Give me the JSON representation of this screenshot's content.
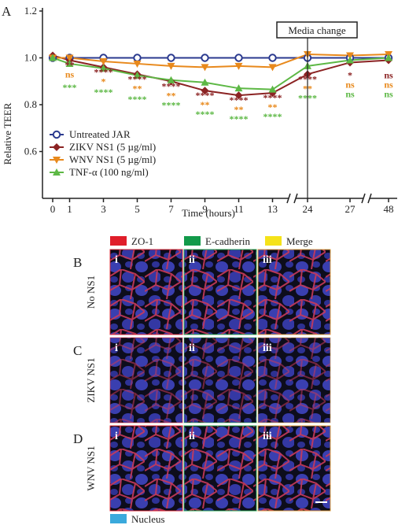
{
  "panel_labels": {
    "A": "A",
    "B": "B",
    "C": "C",
    "D": "D"
  },
  "chart_data": {
    "type": "line",
    "ylabel": "Relative TEER",
    "xlabel": "Time (hours)",
    "ylim": [
      0.4,
      1.2
    ],
    "yticks": [
      "0.6",
      "0.8",
      "1.0",
      "1.2"
    ],
    "x": [
      0,
      1,
      3,
      5,
      7,
      9,
      11,
      13,
      24,
      27,
      48
    ],
    "x_ticks": [
      "0",
      "1",
      "3",
      "5",
      "7",
      "9",
      "11",
      "13",
      "24",
      "27",
      "48"
    ],
    "annotation": "Media change",
    "legend_position": "bottom-left",
    "series": [
      {
        "name": "Untreated JAR",
        "color": "#2b3a8f",
        "marker": "circle",
        "values": [
          1.0,
          1.0,
          1.0,
          1.0,
          1.0,
          1.0,
          1.0,
          1.0,
          1.0,
          1.0,
          1.0
        ]
      },
      {
        "name": "ZIKV NS1 (5 µg/ml)",
        "color": "#8b2323",
        "marker": "diamond",
        "values": [
          1.01,
          0.99,
          0.96,
          0.93,
          0.9,
          0.86,
          0.84,
          0.85,
          0.93,
          0.98,
          0.99
        ]
      },
      {
        "name": "WNV NS1 (5 µg/ml)",
        "color": "#e8891c",
        "marker": "triangle-down",
        "values": [
          1.0,
          1.0,
          0.985,
          0.975,
          0.965,
          0.96,
          0.965,
          0.96,
          1.015,
          1.01,
          1.015
        ]
      },
      {
        "name": "TNF-α (100 ng/ml)",
        "color": "#5db845",
        "marker": "triangle-up",
        "values": [
          1.0,
          0.975,
          0.955,
          0.925,
          0.905,
          0.895,
          0.87,
          0.865,
          0.965,
          0.99,
          1.0
        ]
      }
    ],
    "significance": [
      {
        "series": 1,
        "labels": [
          "",
          "**",
          "****",
          "****",
          "****",
          "****",
          "****",
          "****",
          "****",
          "*",
          "ns"
        ]
      },
      {
        "series": 2,
        "labels": [
          "",
          "ns",
          "*",
          "**",
          "**",
          "**",
          "**",
          "**",
          "**",
          "ns",
          "ns"
        ]
      },
      {
        "series": 3,
        "labels": [
          "",
          "***",
          "****",
          "****",
          "****",
          "****",
          "****",
          "****",
          "****",
          "ns",
          "ns"
        ]
      }
    ]
  },
  "legend_strip": {
    "zo1": {
      "label": "ZO-1",
      "color": "#e01e2a"
    },
    "ecad": {
      "label": "E-cadherin",
      "color": "#129a4a"
    },
    "merge": {
      "label": "Merge",
      "color": "#f5e219"
    },
    "nucleus": {
      "label": "Nucleus",
      "color": "#3aa9dc"
    }
  },
  "rows": [
    {
      "letter": "B",
      "label": "No NS1",
      "sub": [
        "i",
        "ii",
        "iii"
      ]
    },
    {
      "letter": "C",
      "label": "ZIKV NS1",
      "sub": [
        "i",
        "ii",
        "iii"
      ]
    },
    {
      "letter": "D",
      "label": "WNV NS1",
      "sub": [
        "i",
        "ii",
        "iii"
      ]
    }
  ]
}
